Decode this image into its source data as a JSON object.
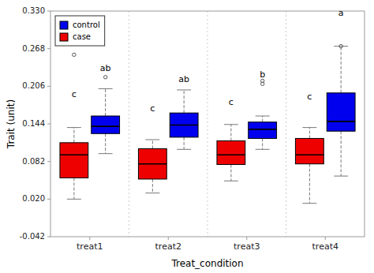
{
  "chart_data": {
    "type": "box",
    "title": "",
    "x_label": "Treat_condition",
    "y_label": "Trait (unit)",
    "categories": [
      "treat1",
      "treat2",
      "treat3",
      "treat4"
    ],
    "ylim": [
      -0.042,
      0.33
    ],
    "yticks": [
      -0.042,
      {
        "value": 0.02,
        "label": "0.020"
      },
      0.082,
      0.144,
      0.206,
      0.268,
      {
        "value": 0.33,
        "label": "0.330"
      }
    ],
    "legend": "upper left",
    "series": [
      {
        "name": "case",
        "color": "#EE0000",
        "q1": [
          0.055,
          0.053,
          0.077,
          0.078
        ],
        "median": [
          0.093,
          0.078,
          0.093,
          0.093
        ],
        "q3": [
          0.113,
          0.103,
          0.116,
          0.12
        ],
        "whislo": [
          0.02,
          0.03,
          0.05,
          0.013
        ],
        "whishi": [
          0.138,
          0.118,
          0.143,
          0.138
        ],
        "fliers": [
          [
            0.258
          ],
          [],
          [],
          []
        ]
      },
      {
        "name": "control",
        "color": "#0000EE",
        "q1": [
          0.128,
          0.122,
          0.12,
          0.132
        ],
        "median": [
          0.14,
          0.142,
          0.135,
          0.148
        ],
        "q3": [
          0.157,
          0.162,
          0.147,
          0.195
        ],
        "whislo": [
          0.095,
          0.102,
          0.102,
          0.058
        ],
        "whishi": [
          0.202,
          0.2,
          0.157,
          0.272
        ],
        "fliers": [
          [
            0.221
          ],
          [],
          [
            0.215,
            0.21
          ],
          [
            0.272
          ]
        ]
      }
    ],
    "annotations": [
      {
        "text": "c",
        "category": "treat1",
        "series": "case",
        "y": 0.185
      },
      {
        "text": "ab",
        "category": "treat1",
        "series": "control",
        "y": 0.228
      },
      {
        "text": "c",
        "category": "treat2",
        "series": "case",
        "y": 0.162
      },
      {
        "text": "ab",
        "category": "treat2",
        "series": "control",
        "y": 0.21
      },
      {
        "text": "c",
        "category": "treat3",
        "series": "case",
        "y": 0.173
      },
      {
        "text": "b",
        "category": "treat3",
        "series": "control",
        "y": 0.218
      },
      {
        "text": "c",
        "category": "treat4",
        "series": "case",
        "y": 0.182
      },
      {
        "text": "a",
        "category": "treat4",
        "series": "control",
        "y": 0.32
      }
    ]
  }
}
